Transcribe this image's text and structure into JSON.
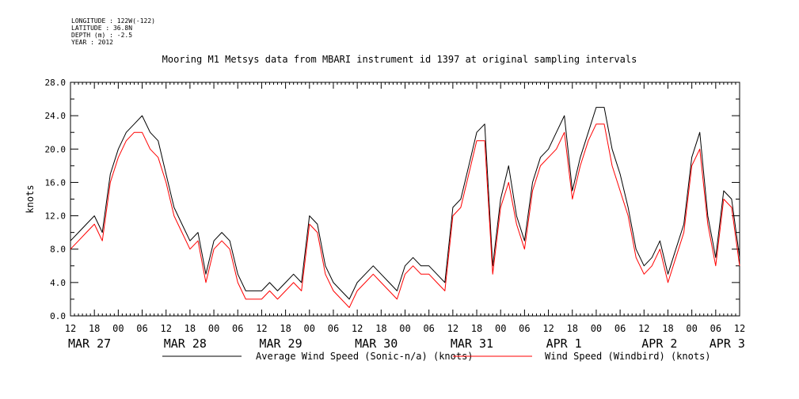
{
  "header": {
    "longitude": "LONGITUDE : 122W(-122)",
    "latitude": "LATITUDE : 36.8N",
    "depth": "DEPTH (m) : -2.5",
    "year": "YEAR : 2012"
  },
  "chart_data": {
    "type": "line",
    "title": "Mooring M1 Metsys data from MBARI instrument id 1397 at original sampling intervals",
    "ylabel": "knots",
    "xlabel": "",
    "ylim": [
      0,
      28
    ],
    "xlim_hours": [
      0,
      168
    ],
    "grid": false,
    "legend_position": "bottom",
    "y_ticks": [
      "0.0",
      "4.0",
      "8.0",
      "12.0",
      "16.0",
      "20.0",
      "24.0",
      "28.0"
    ],
    "x_hour_labels": [
      "12",
      "18",
      "00",
      "06",
      "12",
      "18",
      "00",
      "06",
      "12",
      "18",
      "00",
      "06",
      "12",
      "18",
      "00",
      "06",
      "12",
      "18",
      "00",
      "06",
      "12",
      "18",
      "00",
      "06",
      "12",
      "18",
      "00",
      "06",
      "12"
    ],
    "x_day_labels": [
      {
        "label": "MAR 27",
        "hour": 0
      },
      {
        "label": "MAR 28",
        "hour": 24
      },
      {
        "label": "MAR 29",
        "hour": 48
      },
      {
        "label": "MAR 30",
        "hour": 72
      },
      {
        "label": "MAR 31",
        "hour": 96
      },
      {
        "label": "APR  1",
        "hour": 120
      },
      {
        "label": "APR  2",
        "hour": 144
      },
      {
        "label": "APR  3",
        "hour": 161
      }
    ],
    "series": [
      {
        "name": "Average Wind Speed (Sonic-n/a) (knots)",
        "color": "#000000",
        "x": [
          0,
          2,
          4,
          6,
          8,
          10,
          12,
          14,
          16,
          18,
          20,
          22,
          24,
          26,
          28,
          30,
          32,
          34,
          36,
          38,
          40,
          42,
          44,
          46,
          48,
          50,
          52,
          54,
          56,
          58,
          60,
          62,
          64,
          66,
          68,
          70,
          72,
          74,
          76,
          78,
          80,
          82,
          84,
          86,
          88,
          90,
          92,
          94,
          96,
          98,
          100,
          102,
          104,
          106,
          108,
          110,
          112,
          114,
          116,
          118,
          120,
          122,
          124,
          126,
          128,
          130,
          132,
          134,
          136,
          138,
          140,
          142,
          144,
          146,
          148,
          150,
          152,
          154,
          156,
          158,
          160,
          162,
          164,
          166,
          168
        ],
        "values": [
          9,
          10,
          11,
          12,
          10,
          17,
          20,
          22,
          23,
          24,
          22,
          21,
          17,
          13,
          11,
          9,
          10,
          5,
          9,
          10,
          9,
          5,
          3,
          3,
          3,
          4,
          3,
          4,
          5,
          4,
          12,
          11,
          6,
          4,
          3,
          2,
          4,
          5,
          6,
          5,
          4,
          3,
          6,
          7,
          6,
          6,
          5,
          4,
          13,
          14,
          18,
          22,
          23,
          6,
          14,
          18,
          12,
          9,
          16,
          19,
          20,
          22,
          24,
          15,
          19,
          22,
          25,
          25,
          20,
          17,
          13,
          8,
          6,
          7,
          9,
          5,
          8,
          11,
          19,
          22,
          12,
          7,
          15,
          14,
          7
        ]
      },
      {
        "name": "Wind Speed (Windbird) (knots)",
        "color": "#ff0000",
        "x": [
          0,
          2,
          4,
          6,
          8,
          10,
          12,
          14,
          16,
          18,
          20,
          22,
          24,
          26,
          28,
          30,
          32,
          34,
          36,
          38,
          40,
          42,
          44,
          46,
          48,
          50,
          52,
          54,
          56,
          58,
          60,
          62,
          64,
          66,
          68,
          70,
          72,
          74,
          76,
          78,
          80,
          82,
          84,
          86,
          88,
          90,
          92,
          94,
          96,
          98,
          100,
          102,
          104,
          106,
          108,
          110,
          112,
          114,
          116,
          118,
          120,
          122,
          124,
          126,
          128,
          130,
          132,
          134,
          136,
          138,
          140,
          142,
          144,
          146,
          148,
          150,
          152,
          154,
          156,
          158,
          160,
          162,
          164,
          166,
          168
        ],
        "values": [
          8,
          9,
          10,
          11,
          9,
          16,
          19,
          21,
          22,
          22,
          20,
          19,
          16,
          12,
          10,
          8,
          9,
          4,
          8,
          9,
          8,
          4,
          2,
          2,
          2,
          3,
          2,
          3,
          4,
          3,
          11,
          10,
          5,
          3,
          2,
          1,
          3,
          4,
          5,
          4,
          3,
          2,
          5,
          6,
          5,
          5,
          4,
          3,
          12,
          13,
          17,
          21,
          21,
          5,
          13,
          16,
          11,
          8,
          15,
          18,
          19,
          20,
          22,
          14,
          18,
          21,
          23,
          23,
          18,
          15,
          12,
          7,
          5,
          6,
          8,
          4,
          7,
          10,
          18,
          20,
          11,
          6,
          14,
          13,
          6
        ]
      }
    ]
  }
}
